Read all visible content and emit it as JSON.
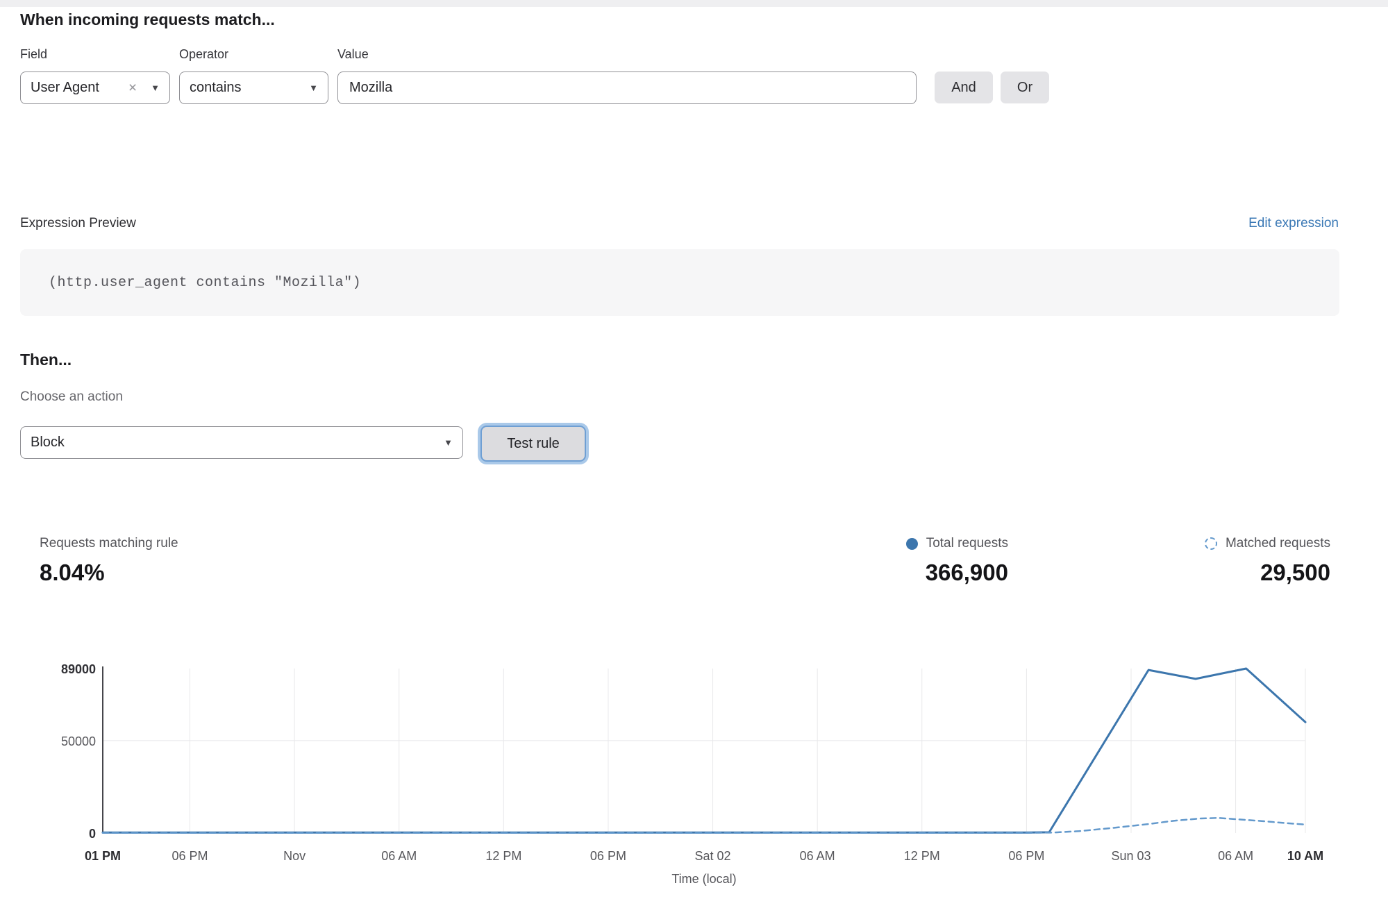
{
  "header": {
    "title": "When incoming requests match..."
  },
  "match_row": {
    "field": {
      "label": "Field",
      "value": "User Agent",
      "clear_icon": "×",
      "caret_icon": "▼"
    },
    "operator": {
      "label": "Operator",
      "value": "contains",
      "caret_icon": "▼"
    },
    "value": {
      "label": "Value",
      "value": "Mozilla"
    },
    "and_label": "And",
    "or_label": "Or"
  },
  "expression": {
    "label": "Expression Preview",
    "edit_link": "Edit expression",
    "code": "(http.user_agent contains \"Mozilla\")"
  },
  "then_section": {
    "heading": "Then...",
    "action_label": "Choose an action",
    "action_value": "Block",
    "action_caret_icon": "▼",
    "test_button": "Test rule"
  },
  "stats": {
    "matching": {
      "label": "Requests matching rule",
      "value": "8.04%"
    },
    "total": {
      "label": "Total requests",
      "value": "366,900",
      "marker": "solid-dot",
      "color": "#3c76ad"
    },
    "matched": {
      "label": "Matched requests",
      "value": "29,500",
      "marker": "dashed-circle",
      "color": "#6399cc"
    }
  },
  "chart_data": {
    "type": "line",
    "xlabel": "Time (local)",
    "ylabel": "",
    "ylim": [
      0,
      89000
    ],
    "x_range_hours": [
      0,
      69
    ],
    "grid": true,
    "y_ticks": [
      {
        "value": 89000,
        "label": "89000",
        "bold": true
      },
      {
        "value": 50000,
        "label": "50000",
        "bold": false
      },
      {
        "value": 0,
        "label": "0",
        "bold": true
      }
    ],
    "x_ticks": [
      {
        "hour": 0,
        "label": "01 PM",
        "bold": true
      },
      {
        "hour": 5,
        "label": "06 PM",
        "bold": false
      },
      {
        "hour": 11,
        "label": "Nov",
        "bold": false
      },
      {
        "hour": 17,
        "label": "06 AM",
        "bold": false
      },
      {
        "hour": 23,
        "label": "12 PM",
        "bold": false
      },
      {
        "hour": 29,
        "label": "06 PM",
        "bold": false
      },
      {
        "hour": 35,
        "label": "Sat 02",
        "bold": false
      },
      {
        "hour": 41,
        "label": "06 AM",
        "bold": false
      },
      {
        "hour": 47,
        "label": "12 PM",
        "bold": false
      },
      {
        "hour": 53,
        "label": "06 PM",
        "bold": false
      },
      {
        "hour": 59,
        "label": "Sun 03",
        "bold": false
      },
      {
        "hour": 65,
        "label": "06 AM",
        "bold": false
      },
      {
        "hour": 69,
        "label": "10 AM",
        "bold": true
      }
    ],
    "series": [
      {
        "name": "Total requests",
        "style": "solid",
        "color": "#3c76ad",
        "width": 3,
        "points": [
          [
            0,
            300
          ],
          [
            5,
            300
          ],
          [
            11,
            300
          ],
          [
            17,
            300
          ],
          [
            23,
            300
          ],
          [
            29,
            300
          ],
          [
            35,
            300
          ],
          [
            41,
            300
          ],
          [
            47,
            300
          ],
          [
            53,
            300
          ],
          [
            54.3,
            400
          ],
          [
            60,
            88200
          ],
          [
            62.7,
            83400
          ],
          [
            65.6,
            89000
          ],
          [
            69,
            60000
          ]
        ]
      },
      {
        "name": "Matched requests",
        "style": "dashed",
        "color": "#6399cc",
        "width": 2.5,
        "points": [
          [
            0,
            130
          ],
          [
            5,
            130
          ],
          [
            11,
            130
          ],
          [
            17,
            130
          ],
          [
            23,
            130
          ],
          [
            29,
            130
          ],
          [
            35,
            130
          ],
          [
            41,
            130
          ],
          [
            47,
            130
          ],
          [
            53,
            130
          ],
          [
            54.5,
            250
          ],
          [
            56,
            1000
          ],
          [
            58,
            2800
          ],
          [
            60,
            4900
          ],
          [
            61.5,
            6700
          ],
          [
            63,
            7900
          ],
          [
            64,
            8200
          ],
          [
            65,
            7500
          ],
          [
            66.5,
            6500
          ],
          [
            68,
            5300
          ],
          [
            69,
            4600
          ]
        ]
      }
    ]
  }
}
